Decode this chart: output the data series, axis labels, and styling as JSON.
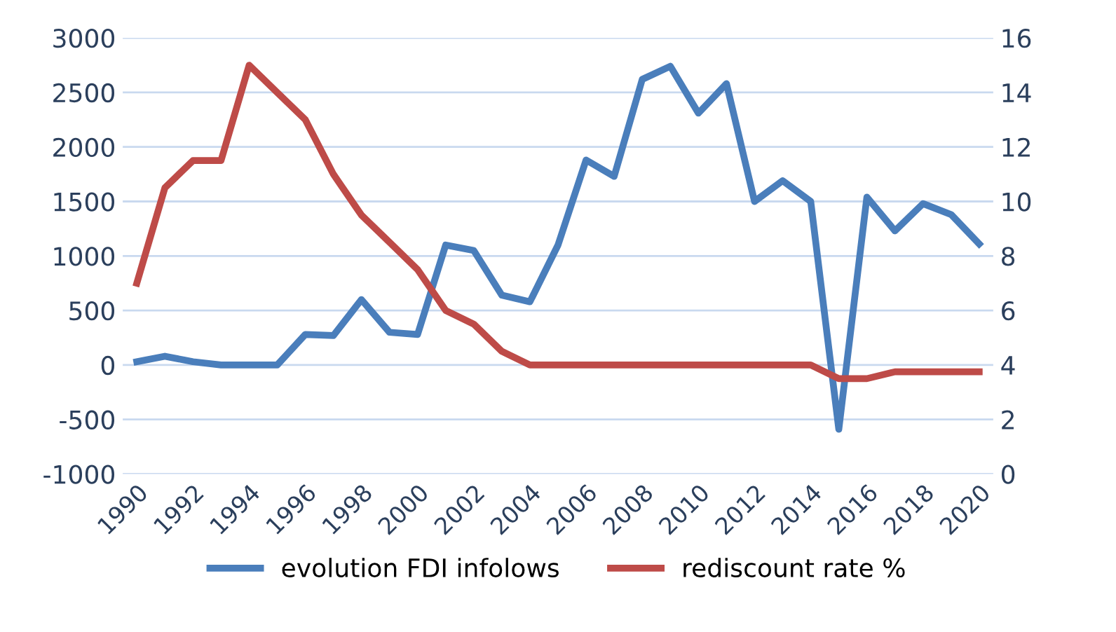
{
  "chart_data": {
    "type": "line",
    "categories": [
      "1990",
      null,
      "1992",
      null,
      "1994",
      null,
      "1996",
      null,
      "1998",
      null,
      "2000",
      null,
      "2002",
      null,
      "2004",
      null,
      "2006",
      null,
      "2008",
      null,
      "2010",
      null,
      "2012",
      null,
      "2014",
      null,
      "2016",
      null,
      "2018",
      null,
      "2020"
    ],
    "series": [
      {
        "name": "evolution FDI infolows",
        "color": "#4a7ebb",
        "values": [
          30,
          80,
          30,
          0,
          0,
          0,
          280,
          270,
          600,
          300,
          280,
          1100,
          1050,
          640,
          580,
          1100,
          1880,
          1730,
          2620,
          2740,
          2310,
          2580,
          1500,
          1690,
          1500,
          -590,
          1540,
          1230,
          1480,
          1380,
          1110
        ]
      },
      {
        "name": "rediscount rate %",
        "color": "#be4b48",
        "axis": "y2",
        "values": [
          7,
          10.5,
          11.5,
          11.5,
          15,
          14,
          13,
          11,
          9.5,
          8.5,
          7.5,
          6,
          5.5,
          4.5,
          4,
          4,
          4,
          4,
          4,
          4,
          4,
          4,
          4,
          4,
          4,
          3.5,
          3.5,
          3.75,
          3.75,
          3.75,
          3.75
        ]
      }
    ],
    "ylim": [
      -1000,
      3000
    ],
    "yticks": [
      -1000,
      -500,
      0,
      500,
      1000,
      1500,
      2000,
      2500,
      3000
    ],
    "y2lim": [
      0,
      16
    ],
    "y2ticks": [
      0,
      2,
      4,
      6,
      8,
      10,
      12,
      14,
      16
    ],
    "grid": "y",
    "legend": "bottom",
    "marker": "none",
    "line_style": "solid"
  }
}
